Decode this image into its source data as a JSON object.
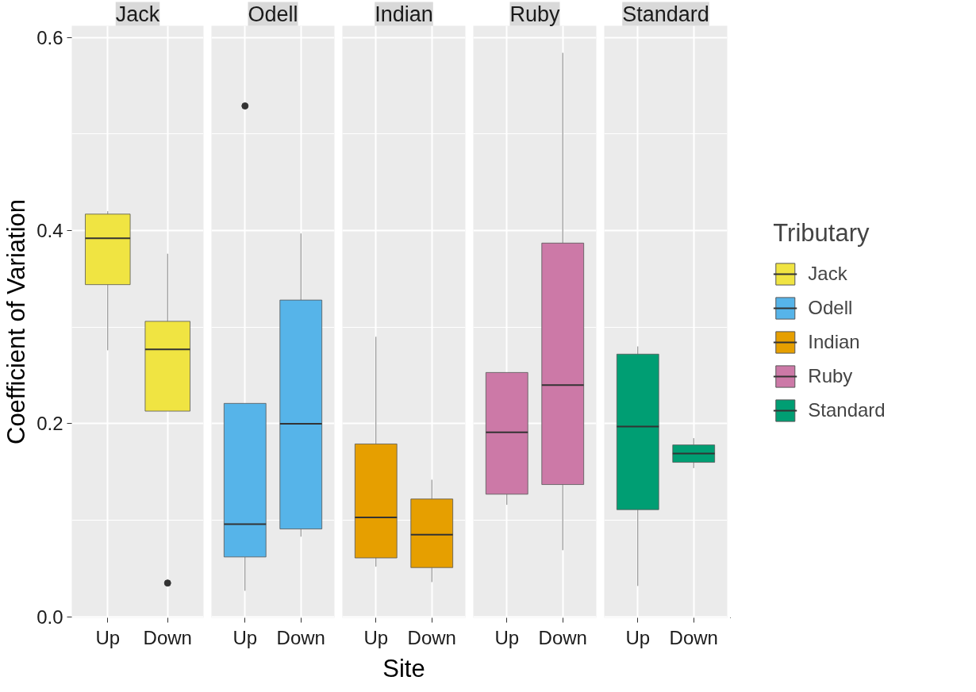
{
  "chart_data": [
    {
      "type": "box",
      "title": "Jack",
      "ylabel": "Coefficient of Variation",
      "categories": [
        "Up",
        "Down"
      ],
      "ylim": [
        -0.001,
        0.612
      ],
      "yticks": [
        {
          "value": 0,
          "label": "0.0"
        },
        {
          "value": 0.2,
          "label": "0.2"
        },
        {
          "value": 0.4,
          "label": "0.4"
        },
        {
          "value": 0.6,
          "label": "0.6"
        }
      ],
      "grid": true,
      "series": [
        {
          "name": "Jack",
          "color": "#f0e442",
          "boxes": [
            {
              "low": 0.276,
              "q1": 0.344,
              "median": 0.392,
              "q3": 0.417,
              "high": 0.42
            },
            {
              "low": 0.213,
              "q1": 0.213,
              "median": 0.277,
              "q3": 0.306,
              "high": 0.376,
              "outliers": [
                0.035
              ]
            }
          ]
        }
      ]
    },
    {
      "type": "box",
      "title": "Odell",
      "categories": [
        "Up",
        "Down"
      ],
      "ylim": [
        -0.001,
        0.612
      ],
      "yticks": [
        0,
        0.2,
        0.4,
        0.6
      ],
      "grid": true,
      "tick_labels": "x",
      "series": [
        {
          "name": "Odell",
          "color": "#56b4e9",
          "boxes": [
            {
              "low": 0.027,
              "q1": 0.062,
              "median": 0.096,
              "q3": 0.221,
              "high": 0.221,
              "outliers": [
                0.529
              ]
            },
            {
              "low": 0.083,
              "q1": 0.091,
              "median": 0.2,
              "q3": 0.328,
              "high": 0.397
            }
          ]
        }
      ]
    },
    {
      "type": "box",
      "title": "Indian",
      "xlabel": "Site",
      "categories": [
        "Up",
        "Down"
      ],
      "ylim": [
        -0.001,
        0.612
      ],
      "yticks": [
        0,
        0.2,
        0.4,
        0.6
      ],
      "grid": true,
      "tick_labels": "x",
      "series": [
        {
          "name": "Indian",
          "color": "#e69f00",
          "boxes": [
            {
              "low": 0.052,
              "q1": 0.061,
              "median": 0.103,
              "q3": 0.179,
              "high": 0.29
            },
            {
              "low": 0.036,
              "q1": 0.051,
              "median": 0.085,
              "q3": 0.122,
              "high": 0.142
            }
          ]
        }
      ]
    },
    {
      "type": "box",
      "title": "Ruby",
      "categories": [
        "Up",
        "Down"
      ],
      "ylim": [
        -0.001,
        0.612
      ],
      "yticks": [
        0,
        0.2,
        0.4,
        0.6
      ],
      "grid": true,
      "tick_labels": "x",
      "series": [
        {
          "name": "Ruby",
          "color": "#cc79a7",
          "boxes": [
            {
              "low": 0.116,
              "q1": 0.127,
              "median": 0.191,
              "q3": 0.253,
              "high": 0.253
            },
            {
              "low": 0.069,
              "q1": 0.137,
              "median": 0.24,
              "q3": 0.387,
              "high": 0.584
            }
          ]
        }
      ]
    },
    {
      "type": "box",
      "title": "Standard",
      "legend_title": "Tributary",
      "legend": "right",
      "categories": [
        "Up",
        "Down"
      ],
      "ylim": [
        -0.001,
        0.612
      ],
      "yticks": [
        0,
        0.2,
        0.4,
        0.6
      ],
      "grid": true,
      "tick_labels": "x",
      "series": [
        {
          "name": "Standard",
          "color": "#009e73",
          "boxes": [
            {
              "low": 0.032,
              "q1": 0.111,
              "median": 0.197,
              "q3": 0.272,
              "high": 0.28
            },
            {
              "low": 0.154,
              "q1": 0.16,
              "median": 0.169,
              "q3": 0.178,
              "high": 0.185
            }
          ]
        }
      ]
    }
  ]
}
